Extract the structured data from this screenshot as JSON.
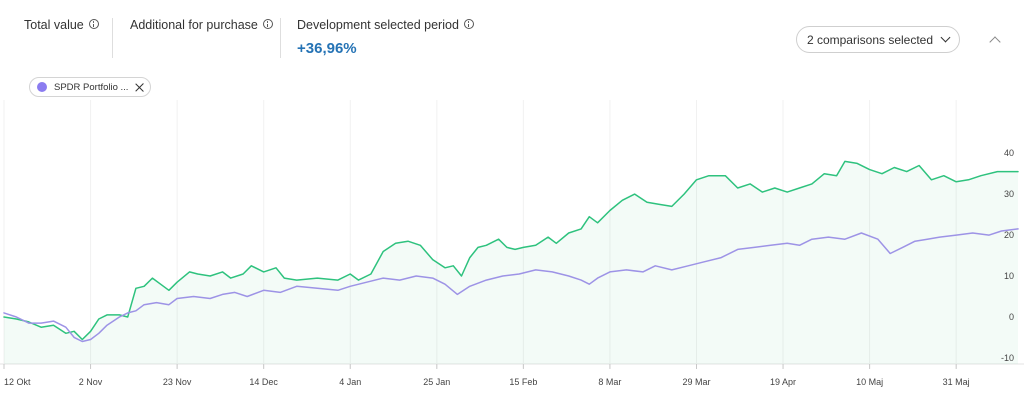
{
  "header": {
    "total_value_label": "Total value",
    "additional_label": "Additional for purchase",
    "development_label": "Development selected period",
    "development_value": "+36,96%",
    "comparisons_button": "2 comparisons selected"
  },
  "chip": {
    "label": "SPDR Portfolio ...",
    "color": "#8b7cf0"
  },
  "colors": {
    "primary": "#2ec27e",
    "comparison": "#9d93e6",
    "accent": "#2573b5"
  },
  "icons": {
    "info": "info-icon",
    "dropdown": "chevron-down-icon",
    "collapse": "chevron-up-icon",
    "close": "close-icon"
  },
  "chart_data": {
    "type": "line",
    "xlim": [
      "2020-10-12",
      "2021-06-15"
    ],
    "ylim": [
      -11,
      42
    ],
    "y_ticks": [
      40,
      30,
      20,
      10,
      0,
      -10
    ],
    "x_ticks": [
      {
        "date": "2020-10-12",
        "label": "12 Okt"
      },
      {
        "date": "2020-11-02",
        "label": "2 Nov"
      },
      {
        "date": "2020-11-23",
        "label": "23 Nov"
      },
      {
        "date": "2020-12-14",
        "label": "14 Dec"
      },
      {
        "date": "2021-01-04",
        "label": "4 Jan"
      },
      {
        "date": "2021-01-25",
        "label": "25 Jan"
      },
      {
        "date": "2021-02-15",
        "label": "15 Feb"
      },
      {
        "date": "2021-03-08",
        "label": "8 Mar"
      },
      {
        "date": "2021-03-29",
        "label": "29 Mar"
      },
      {
        "date": "2021-04-19",
        "label": "19 Apr"
      },
      {
        "date": "2021-05-10",
        "label": "10 Maj"
      },
      {
        "date": "2021-05-31",
        "label": "31 Maj"
      }
    ],
    "series": [
      {
        "color": "#2ec27e",
        "area": true,
        "points": [
          [
            "2020-10-12",
            0.0
          ],
          [
            "2020-10-15",
            -0.5
          ],
          [
            "2020-10-18",
            -1.2
          ],
          [
            "2020-10-21",
            -2.5
          ],
          [
            "2020-10-24",
            -2.0
          ],
          [
            "2020-10-27",
            -4.0
          ],
          [
            "2020-10-29",
            -3.5
          ],
          [
            "2020-10-31",
            -5.5
          ],
          [
            "2020-11-02",
            -3.5
          ],
          [
            "2020-11-04",
            -0.5
          ],
          [
            "2020-11-06",
            0.5
          ],
          [
            "2020-11-09",
            0.5
          ],
          [
            "2020-11-11",
            0.0
          ],
          [
            "2020-11-13",
            7.0
          ],
          [
            "2020-11-15",
            7.5
          ],
          [
            "2020-11-17",
            9.5
          ],
          [
            "2020-11-19",
            8.0
          ],
          [
            "2020-11-21",
            6.5
          ],
          [
            "2020-11-23",
            8.5
          ],
          [
            "2020-11-26",
            11.0
          ],
          [
            "2020-11-28",
            10.5
          ],
          [
            "2020-12-01",
            10.0
          ],
          [
            "2020-12-04",
            11.0
          ],
          [
            "2020-12-06",
            9.5
          ],
          [
            "2020-12-09",
            10.5
          ],
          [
            "2020-12-11",
            12.5
          ],
          [
            "2020-12-14",
            11.0
          ],
          [
            "2020-12-17",
            12.0
          ],
          [
            "2020-12-19",
            9.5
          ],
          [
            "2020-12-22",
            9.0
          ],
          [
            "2020-12-27",
            9.5
          ],
          [
            "2021-01-01",
            9.0
          ],
          [
            "2021-01-04",
            10.5
          ],
          [
            "2021-01-06",
            9.0
          ],
          [
            "2021-01-09",
            10.5
          ],
          [
            "2021-01-12",
            16.0
          ],
          [
            "2021-01-15",
            18.0
          ],
          [
            "2021-01-18",
            18.5
          ],
          [
            "2021-01-21",
            17.5
          ],
          [
            "2021-01-24",
            14.0
          ],
          [
            "2021-01-27",
            12.0
          ],
          [
            "2021-01-29",
            12.5
          ],
          [
            "2021-01-31",
            10.0
          ],
          [
            "2021-02-02",
            14.5
          ],
          [
            "2021-02-04",
            17.0
          ],
          [
            "2021-02-06",
            17.5
          ],
          [
            "2021-02-09",
            19.0
          ],
          [
            "2021-02-11",
            17.0
          ],
          [
            "2021-02-13",
            16.5
          ],
          [
            "2021-02-15",
            17.0
          ],
          [
            "2021-02-18",
            17.5
          ],
          [
            "2021-02-21",
            19.5
          ],
          [
            "2021-02-23",
            18.0
          ],
          [
            "2021-02-26",
            20.5
          ],
          [
            "2021-03-01",
            21.5
          ],
          [
            "2021-03-03",
            24.5
          ],
          [
            "2021-03-05",
            23.0
          ],
          [
            "2021-03-08",
            26.0
          ],
          [
            "2021-03-11",
            28.5
          ],
          [
            "2021-03-14",
            30.0
          ],
          [
            "2021-03-17",
            28.0
          ],
          [
            "2021-03-20",
            27.5
          ],
          [
            "2021-03-23",
            27.0
          ],
          [
            "2021-03-26",
            30.0
          ],
          [
            "2021-03-29",
            33.5
          ],
          [
            "2021-04-01",
            34.5
          ],
          [
            "2021-04-05",
            34.5
          ],
          [
            "2021-04-08",
            31.5
          ],
          [
            "2021-04-11",
            32.5
          ],
          [
            "2021-04-14",
            30.5
          ],
          [
            "2021-04-17",
            31.5
          ],
          [
            "2021-04-20",
            30.5
          ],
          [
            "2021-04-23",
            31.5
          ],
          [
            "2021-04-26",
            32.5
          ],
          [
            "2021-04-29",
            35.0
          ],
          [
            "2021-05-02",
            34.5
          ],
          [
            "2021-05-04",
            38.0
          ],
          [
            "2021-05-07",
            37.5
          ],
          [
            "2021-05-10",
            36.0
          ],
          [
            "2021-05-13",
            35.0
          ],
          [
            "2021-05-16",
            36.5
          ],
          [
            "2021-05-19",
            35.5
          ],
          [
            "2021-05-22",
            37.0
          ],
          [
            "2021-05-25",
            33.5
          ],
          [
            "2021-05-28",
            34.5
          ],
          [
            "2021-05-31",
            33.0
          ],
          [
            "2021-06-03",
            33.5
          ],
          [
            "2021-06-06",
            34.5
          ],
          [
            "2021-06-10",
            35.5
          ],
          [
            "2021-06-15",
            35.5
          ]
        ]
      },
      {
        "color": "#9d93e6",
        "area": false,
        "points": [
          [
            "2020-10-12",
            1.0
          ],
          [
            "2020-10-15",
            0.0
          ],
          [
            "2020-10-18",
            -1.5
          ],
          [
            "2020-10-21",
            -1.5
          ],
          [
            "2020-10-24",
            -1.0
          ],
          [
            "2020-10-27",
            -2.5
          ],
          [
            "2020-10-29",
            -5.0
          ],
          [
            "2020-10-31",
            -6.0
          ],
          [
            "2020-11-02",
            -5.5
          ],
          [
            "2020-11-04",
            -4.0
          ],
          [
            "2020-11-06",
            -2.0
          ],
          [
            "2020-11-09",
            0.0
          ],
          [
            "2020-11-11",
            1.0
          ],
          [
            "2020-11-13",
            1.5
          ],
          [
            "2020-11-15",
            3.0
          ],
          [
            "2020-11-18",
            3.5
          ],
          [
            "2020-11-21",
            3.0
          ],
          [
            "2020-11-23",
            4.5
          ],
          [
            "2020-11-27",
            5.0
          ],
          [
            "2020-12-01",
            4.5
          ],
          [
            "2020-12-04",
            5.5
          ],
          [
            "2020-12-07",
            6.0
          ],
          [
            "2020-12-10",
            5.0
          ],
          [
            "2020-12-14",
            6.5
          ],
          [
            "2020-12-18",
            6.0
          ],
          [
            "2020-12-22",
            7.5
          ],
          [
            "2020-12-27",
            7.0
          ],
          [
            "2021-01-01",
            6.5
          ],
          [
            "2021-01-04",
            7.5
          ],
          [
            "2021-01-08",
            8.5
          ],
          [
            "2021-01-12",
            9.5
          ],
          [
            "2021-01-16",
            9.0
          ],
          [
            "2021-01-20",
            10.0
          ],
          [
            "2021-01-24",
            9.5
          ],
          [
            "2021-01-27",
            8.0
          ],
          [
            "2021-01-30",
            5.5
          ],
          [
            "2021-02-02",
            7.5
          ],
          [
            "2021-02-06",
            9.0
          ],
          [
            "2021-02-10",
            10.0
          ],
          [
            "2021-02-14",
            10.5
          ],
          [
            "2021-02-18",
            11.5
          ],
          [
            "2021-02-22",
            11.0
          ],
          [
            "2021-02-26",
            10.0
          ],
          [
            "2021-03-01",
            9.0
          ],
          [
            "2021-03-03",
            8.0
          ],
          [
            "2021-03-05",
            9.5
          ],
          [
            "2021-03-08",
            11.0
          ],
          [
            "2021-03-12",
            11.5
          ],
          [
            "2021-03-16",
            11.0
          ],
          [
            "2021-03-19",
            12.5
          ],
          [
            "2021-03-23",
            11.5
          ],
          [
            "2021-03-27",
            12.5
          ],
          [
            "2021-03-31",
            13.5
          ],
          [
            "2021-04-04",
            14.5
          ],
          [
            "2021-04-08",
            16.5
          ],
          [
            "2021-04-12",
            17.0
          ],
          [
            "2021-04-16",
            17.5
          ],
          [
            "2021-04-20",
            18.0
          ],
          [
            "2021-04-23",
            17.5
          ],
          [
            "2021-04-26",
            19.0
          ],
          [
            "2021-04-30",
            19.5
          ],
          [
            "2021-05-04",
            19.0
          ],
          [
            "2021-05-08",
            20.5
          ],
          [
            "2021-05-12",
            19.0
          ],
          [
            "2021-05-15",
            15.5
          ],
          [
            "2021-05-18",
            17.0
          ],
          [
            "2021-05-21",
            18.5
          ],
          [
            "2021-05-24",
            19.0
          ],
          [
            "2021-05-27",
            19.5
          ],
          [
            "2021-05-31",
            20.0
          ],
          [
            "2021-06-04",
            20.5
          ],
          [
            "2021-06-08",
            20.0
          ],
          [
            "2021-06-11",
            21.0
          ],
          [
            "2021-06-15",
            21.5
          ]
        ]
      }
    ]
  }
}
